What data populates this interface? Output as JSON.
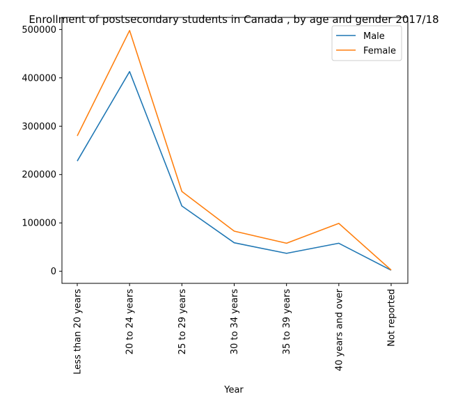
{
  "chart_data": {
    "type": "line",
    "title": "Enrollment of postsecondary students in Canada , by age and gender 2017/18",
    "xlabel": "Year",
    "ylabel": "",
    "categories": [
      "Less than 20 years",
      "20 to 24 years",
      "25 to 29 years",
      "30 to 34 years",
      "35 to 39 years",
      "40 years and over",
      "Not reported"
    ],
    "ylim": [
      -25000,
      525000
    ],
    "yticks": [
      0,
      100000,
      200000,
      300000,
      400000,
      500000
    ],
    "ytick_labels": [
      "0",
      "100000",
      "200000",
      "300000",
      "400000",
      "500000"
    ],
    "grid": false,
    "legend_position": "top-right",
    "series": [
      {
        "name": "Male",
        "color": "#1f77b4",
        "values": [
          228000,
          413000,
          135000,
          59000,
          37000,
          58000,
          2000
        ]
      },
      {
        "name": "Female",
        "color": "#ff7f0e",
        "values": [
          280000,
          498000,
          165000,
          83000,
          58000,
          99000,
          2500
        ]
      }
    ]
  }
}
